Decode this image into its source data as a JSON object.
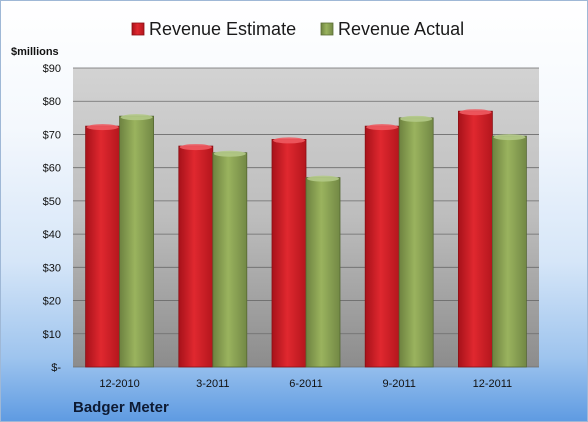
{
  "chart_data": {
    "type": "bar",
    "unit_label": "$millions",
    "categories": [
      "12-2010",
      "3-2011",
      "6-2011",
      "9-2011",
      "12-2011"
    ],
    "series": [
      {
        "name": "Revenue Estimate",
        "values": [
          72.5,
          66.5,
          68.5,
          72.5,
          77.0
        ],
        "color": "#d42128"
      },
      {
        "name": "Revenue Actual",
        "values": [
          75.5,
          64.5,
          57.0,
          75.0,
          69.5
        ],
        "color": "#8aa152"
      }
    ],
    "y_ticks": [
      "$-",
      "$10",
      "$20",
      "$30",
      "$40",
      "$50",
      "$60",
      "$70",
      "$80",
      "$90"
    ],
    "ylim": [
      0,
      90
    ],
    "grid": true,
    "legend_position": "top"
  },
  "company": "Badger Meter"
}
